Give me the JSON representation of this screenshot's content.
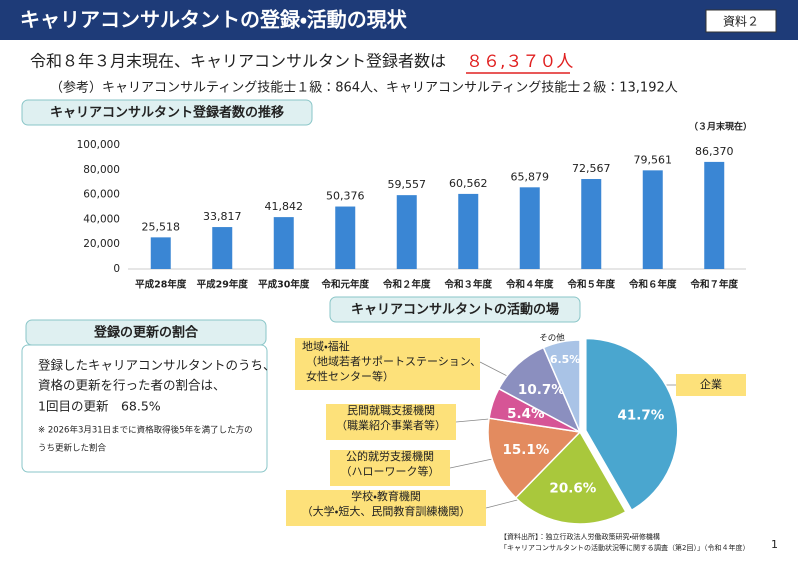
{
  "header": {
    "title": "キャリアコンサルタントの登録・活動の現状",
    "badge": "資料２"
  },
  "headline": {
    "text": "令和８年３月末現在、キャリアコンサルタント登録者数は",
    "highlight": "８６,３７０人"
  },
  "reference": "（参考）キャリアコンサルティング技能士１級：864人、キャリアコンサルティング技能士２級：13,192人",
  "chart_data": [
    {
      "type": "bar",
      "title": "キャリアコンサルタント登録者数の推移",
      "subtitle": "（３月末現在）",
      "categories": [
        "平成28年度",
        "平成29年度",
        "平成30年度",
        "令和元年度",
        "令和２年度",
        "令和３年度",
        "令和４年度",
        "令和５年度",
        "令和６年度",
        "令和７年度"
      ],
      "values": [
        25518,
        33817,
        41842,
        50376,
        59557,
        60562,
        65879,
        72567,
        79561,
        86370
      ],
      "value_labels": [
        "25,518",
        "33,817",
        "41,842",
        "50,376",
        "59,557",
        "60,562",
        "65,879",
        "72,567",
        "79,561",
        "86,370"
      ],
      "color": "#3a86d4",
      "ylim": [
        0,
        100000
      ],
      "yticks": [
        0,
        {
          "value": 20000,
          "label": "20,000"
        },
        {
          "value": 40000,
          "label": "40,000"
        },
        {
          "value": 60000,
          "label": "60,000"
        },
        {
          "value": 80000,
          "label": "80,000"
        },
        {
          "value": 100000,
          "label": "100,000"
        }
      ],
      "grid": false
    },
    {
      "type": "pie",
      "title": "キャリアコンサルタントの活動の場",
      "categories": [
        "企業",
        "学校・教育機関",
        "公的就労支援機関",
        "民間就職支援機関",
        "地域・福祉",
        "その他"
      ],
      "category_notes": [
        [],
        [
          "（大学・短大、民間教育訓練機関）"
        ],
        [
          "（ハローワーク等）"
        ],
        [
          "（職業紹介事業者等）"
        ],
        [
          "（地域若者サポートステーション、",
          "女性センター等）"
        ],
        []
      ],
      "values": [
        41.7,
        20.6,
        15.1,
        5.4,
        10.7,
        6.5
      ],
      "value_labels": [
        "41.7%",
        "20.6%",
        "15.1%",
        "5.4%",
        "10.7%",
        "6.5%"
      ],
      "colors": [
        "#4aa6cf",
        "#a9c83c",
        "#e38b5f",
        "#d65596",
        "#8b8fbf",
        "#a9c3e6"
      ]
    }
  ],
  "renewal": {
    "title": "登録の更新の割合",
    "lines": [
      "登録したキャリアコンサルタントのうち、",
      "資格の更新を行った者の割合は、",
      "1回目の更新　68.5%"
    ],
    "notes": [
      "※ 2026年3月31日までに資格取得後5年を満了した方の",
      "うち更新した割合"
    ]
  },
  "source": [
    "【資料出所】：独立行政法人労働政策研究・研修機構",
    "「キャリアコンサルタントの活動状況等に関する調査（第2回）」（令和４年度）"
  ],
  "page_number": "1"
}
